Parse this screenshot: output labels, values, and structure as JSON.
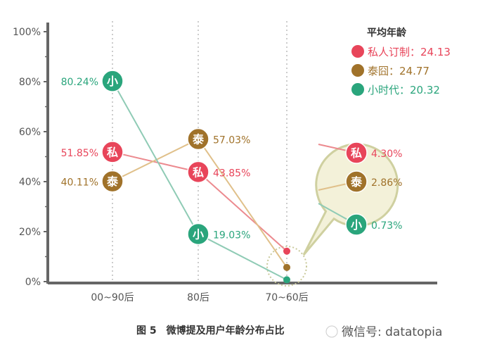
{
  "chart_data": {
    "type": "line",
    "title": "图 5　微博提及用户年龄分布占比",
    "categories": [
      "00~90后",
      "80后",
      "70~60后"
    ],
    "ylim": [
      0,
      100
    ],
    "yticks": [
      "0%",
      "20%",
      "40%",
      "60%",
      "80%",
      "100%"
    ],
    "grid": "vertical dotted",
    "legend_title": "平均年龄",
    "legend_placement": "top-right",
    "series": [
      {
        "name": "私人订制",
        "marker": "私",
        "avg_label": "私人订制：24.13",
        "color": "#e8455a",
        "line": "#ec8a8f",
        "values": [
          51.85,
          43.85,
          4.3
        ],
        "labels": [
          "51.85%",
          "43.85%",
          "4.30%"
        ]
      },
      {
        "name": "泰囧",
        "marker": "泰",
        "avg_label": "泰囧：24.77",
        "color": "#a0722a",
        "line": "#e0c08a",
        "values": [
          40.11,
          57.03,
          2.86
        ],
        "labels": [
          "40.11%",
          "57.03%",
          "2.86%"
        ]
      },
      {
        "name": "小时代",
        "marker": "小",
        "avg_label": "小时代：20.32",
        "color": "#2aa57c",
        "line": "#8fcbb5",
        "values": [
          80.24,
          19.03,
          0.73
        ],
        "labels": [
          "80.24%",
          "19.03%",
          "0.73%"
        ]
      }
    ]
  },
  "watermark": "微信号: datatopia"
}
